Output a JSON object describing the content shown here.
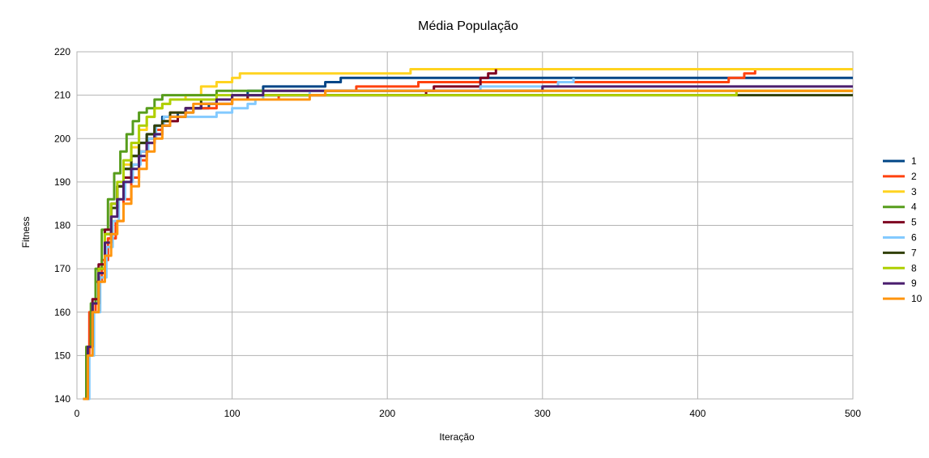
{
  "chart_data": {
    "type": "line",
    "title": "Média População",
    "xlabel": "Iteração",
    "ylabel": "Fitness",
    "xlim": [
      0,
      500
    ],
    "ylim": [
      140,
      220
    ],
    "xticks": [
      0,
      100,
      200,
      300,
      400,
      500
    ],
    "yticks": [
      140,
      150,
      160,
      170,
      180,
      190,
      200,
      210,
      220
    ],
    "grid": true,
    "legend_position": "right",
    "series": [
      {
        "name": "1",
        "color": "#004586",
        "points": [
          [
            4,
            140
          ],
          [
            7,
            152
          ],
          [
            10,
            162
          ],
          [
            14,
            170
          ],
          [
            18,
            178
          ],
          [
            22,
            184
          ],
          [
            26,
            189
          ],
          [
            30,
            193
          ],
          [
            35,
            196
          ],
          [
            40,
            199
          ],
          [
            45,
            201
          ],
          [
            50,
            203
          ],
          [
            55,
            205
          ],
          [
            65,
            206
          ],
          [
            75,
            207
          ],
          [
            85,
            208
          ],
          [
            100,
            209
          ],
          [
            110,
            211
          ],
          [
            120,
            212
          ],
          [
            160,
            213
          ],
          [
            170,
            214
          ],
          [
            500,
            214
          ]
        ]
      },
      {
        "name": "2",
        "color": "#ff420e",
        "points": [
          [
            4,
            140
          ],
          [
            6,
            150
          ],
          [
            8,
            160
          ],
          [
            12,
            167
          ],
          [
            16,
            172
          ],
          [
            20,
            177
          ],
          [
            25,
            181
          ],
          [
            30,
            186
          ],
          [
            35,
            191
          ],
          [
            40,
            195
          ],
          [
            45,
            199
          ],
          [
            50,
            202
          ],
          [
            55,
            204
          ],
          [
            60,
            206
          ],
          [
            70,
            207
          ],
          [
            90,
            208
          ],
          [
            100,
            209
          ],
          [
            130,
            210
          ],
          [
            160,
            211
          ],
          [
            180,
            212
          ],
          [
            220,
            213
          ],
          [
            420,
            214
          ],
          [
            430,
            215
          ],
          [
            437,
            216
          ],
          [
            500,
            216
          ]
        ]
      },
      {
        "name": "3",
        "color": "#ffd320",
        "points": [
          [
            4,
            140
          ],
          [
            7,
            152
          ],
          [
            10,
            162
          ],
          [
            14,
            170
          ],
          [
            18,
            178
          ],
          [
            22,
            184
          ],
          [
            26,
            189
          ],
          [
            30,
            194
          ],
          [
            35,
            198
          ],
          [
            40,
            202
          ],
          [
            45,
            205
          ],
          [
            50,
            207
          ],
          [
            55,
            208
          ],
          [
            60,
            209
          ],
          [
            70,
            210
          ],
          [
            80,
            212
          ],
          [
            90,
            213
          ],
          [
            100,
            214
          ],
          [
            105,
            215
          ],
          [
            210,
            215
          ],
          [
            215,
            216
          ],
          [
            500,
            216
          ]
        ]
      },
      {
        "name": "4",
        "color": "#579d1c",
        "points": [
          [
            4,
            140
          ],
          [
            6,
            152
          ],
          [
            9,
            162
          ],
          [
            12,
            170
          ],
          [
            16,
            179
          ],
          [
            20,
            186
          ],
          [
            24,
            192
          ],
          [
            28,
            197
          ],
          [
            32,
            201
          ],
          [
            36,
            204
          ],
          [
            40,
            206
          ],
          [
            45,
            207
          ],
          [
            50,
            209
          ],
          [
            55,
            210
          ],
          [
            80,
            210
          ],
          [
            90,
            211
          ],
          [
            500,
            211
          ]
        ]
      },
      {
        "name": "5",
        "color": "#7e0021",
        "points": [
          [
            4,
            140
          ],
          [
            7,
            152
          ],
          [
            10,
            163
          ],
          [
            14,
            171
          ],
          [
            18,
            179
          ],
          [
            22,
            185
          ],
          [
            26,
            189
          ],
          [
            30,
            191
          ],
          [
            35,
            194
          ],
          [
            40,
            197
          ],
          [
            45,
            200
          ],
          [
            50,
            201
          ],
          [
            55,
            203
          ],
          [
            60,
            204
          ],
          [
            65,
            205
          ],
          [
            70,
            207
          ],
          [
            80,
            208
          ],
          [
            90,
            209
          ],
          [
            110,
            210
          ],
          [
            220,
            210
          ],
          [
            225,
            211
          ],
          [
            230,
            212
          ],
          [
            260,
            214
          ],
          [
            265,
            215
          ],
          [
            270,
            216
          ]
        ]
      },
      {
        "name": "6",
        "color": "#83caff",
        "points": [
          [
            4,
            140
          ],
          [
            8,
            150
          ],
          [
            11,
            160
          ],
          [
            15,
            168
          ],
          [
            19,
            175
          ],
          [
            23,
            181
          ],
          [
            27,
            186
          ],
          [
            31,
            190
          ],
          [
            36,
            194
          ],
          [
            41,
            197
          ],
          [
            46,
            200
          ],
          [
            51,
            203
          ],
          [
            56,
            205
          ],
          [
            90,
            206
          ],
          [
            100,
            207
          ],
          [
            110,
            208
          ],
          [
            115,
            209
          ],
          [
            120,
            210
          ],
          [
            150,
            211
          ],
          [
            260,
            212
          ],
          [
            310,
            213
          ],
          [
            320,
            214
          ]
        ]
      },
      {
        "name": "7",
        "color": "#314004",
        "points": [
          [
            4,
            140
          ],
          [
            7,
            152
          ],
          [
            10,
            162
          ],
          [
            14,
            170
          ],
          [
            18,
            178
          ],
          [
            22,
            184
          ],
          [
            26,
            189
          ],
          [
            30,
            193
          ],
          [
            35,
            196
          ],
          [
            40,
            199
          ],
          [
            45,
            201
          ],
          [
            50,
            203
          ],
          [
            55,
            204
          ],
          [
            60,
            206
          ],
          [
            70,
            207
          ],
          [
            80,
            209
          ],
          [
            100,
            210
          ],
          [
            500,
            210
          ]
        ]
      },
      {
        "name": "8",
        "color": "#aecf00",
        "points": [
          [
            4,
            140
          ],
          [
            7,
            152
          ],
          [
            10,
            162
          ],
          [
            14,
            170
          ],
          [
            18,
            178
          ],
          [
            22,
            185
          ],
          [
            26,
            190
          ],
          [
            30,
            195
          ],
          [
            35,
            199
          ],
          [
            40,
            203
          ],
          [
            45,
            205
          ],
          [
            50,
            207
          ],
          [
            55,
            208
          ],
          [
            60,
            209
          ],
          [
            90,
            210
          ],
          [
            420,
            210
          ],
          [
            425,
            211
          ],
          [
            500,
            211
          ]
        ]
      },
      {
        "name": "9",
        "color": "#4b1f6f",
        "points": [
          [
            4,
            140
          ],
          [
            7,
            152
          ],
          [
            10,
            162
          ],
          [
            14,
            169
          ],
          [
            18,
            176
          ],
          [
            22,
            182
          ],
          [
            26,
            186
          ],
          [
            30,
            190
          ],
          [
            35,
            193
          ],
          [
            40,
            196
          ],
          [
            45,
            199
          ],
          [
            50,
            201
          ],
          [
            55,
            203
          ],
          [
            60,
            205
          ],
          [
            70,
            207
          ],
          [
            80,
            208
          ],
          [
            90,
            209
          ],
          [
            100,
            210
          ],
          [
            120,
            211
          ],
          [
            300,
            212
          ],
          [
            500,
            212
          ]
        ]
      },
      {
        "name": "10",
        "color": "#ff950e",
        "points": [
          [
            4,
            140
          ],
          [
            7,
            150
          ],
          [
            10,
            160
          ],
          [
            14,
            167
          ],
          [
            18,
            173
          ],
          [
            22,
            178
          ],
          [
            26,
            181
          ],
          [
            30,
            185
          ],
          [
            35,
            189
          ],
          [
            40,
            193
          ],
          [
            45,
            197
          ],
          [
            50,
            200
          ],
          [
            55,
            203
          ],
          [
            60,
            205
          ],
          [
            70,
            206
          ],
          [
            75,
            208
          ],
          [
            100,
            209
          ],
          [
            150,
            210
          ],
          [
            160,
            211
          ],
          [
            370,
            211
          ],
          [
            500,
            211
          ]
        ]
      }
    ]
  }
}
